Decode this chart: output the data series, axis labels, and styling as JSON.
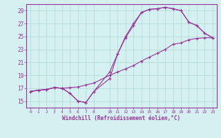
{
  "xlabel": "Windchill (Refroidissement éolien,°C)",
  "bg_color": "#d4f0f0",
  "grid_color": "#b0d8d0",
  "line_color": "#993399",
  "xlim": [
    -0.5,
    23.5
  ],
  "ylim": [
    14.0,
    30.0
  ],
  "yticks": [
    15,
    17,
    19,
    21,
    23,
    25,
    27,
    29
  ],
  "xticks": [
    0,
    1,
    2,
    3,
    4,
    5,
    6,
    7,
    8,
    10,
    11,
    12,
    13,
    14,
    15,
    16,
    17,
    18,
    19,
    20,
    21,
    22,
    23
  ],
  "line1_x": [
    0,
    1,
    2,
    3,
    4,
    5,
    6,
    7,
    8,
    10,
    11,
    12,
    13,
    14,
    15,
    16,
    17,
    18,
    19,
    20,
    21,
    22,
    23
  ],
  "line1_y": [
    16.5,
    16.7,
    16.8,
    17.1,
    17.0,
    16.2,
    15.0,
    14.8,
    16.5,
    18.5,
    22.3,
    24.8,
    26.7,
    28.7,
    29.2,
    29.3,
    29.5,
    29.3,
    29.0,
    27.2,
    26.7,
    25.5,
    24.8
  ],
  "line2_x": [
    0,
    1,
    2,
    3,
    4,
    5,
    6,
    7,
    8,
    10,
    11,
    12,
    13,
    14,
    15,
    16,
    17,
    18,
    19,
    20,
    21,
    22,
    23
  ],
  "line2_y": [
    16.5,
    16.7,
    16.8,
    17.1,
    17.0,
    17.1,
    17.2,
    17.5,
    17.8,
    19.0,
    19.5,
    20.0,
    20.5,
    21.2,
    21.8,
    22.4,
    23.0,
    23.8,
    24.0,
    24.5,
    24.7,
    24.8,
    24.8
  ],
  "line3_x": [
    0,
    1,
    2,
    3,
    4,
    5,
    6,
    7,
    8,
    10,
    11,
    12,
    13,
    14,
    15,
    16,
    17,
    18,
    19,
    20,
    21,
    22,
    23
  ],
  "line3_y": [
    16.5,
    16.7,
    16.8,
    17.1,
    17.0,
    16.2,
    15.0,
    14.8,
    16.5,
    19.5,
    22.3,
    25.0,
    27.0,
    28.7,
    29.2,
    29.3,
    29.5,
    29.3,
    29.0,
    27.2,
    26.7,
    25.5,
    24.8
  ]
}
